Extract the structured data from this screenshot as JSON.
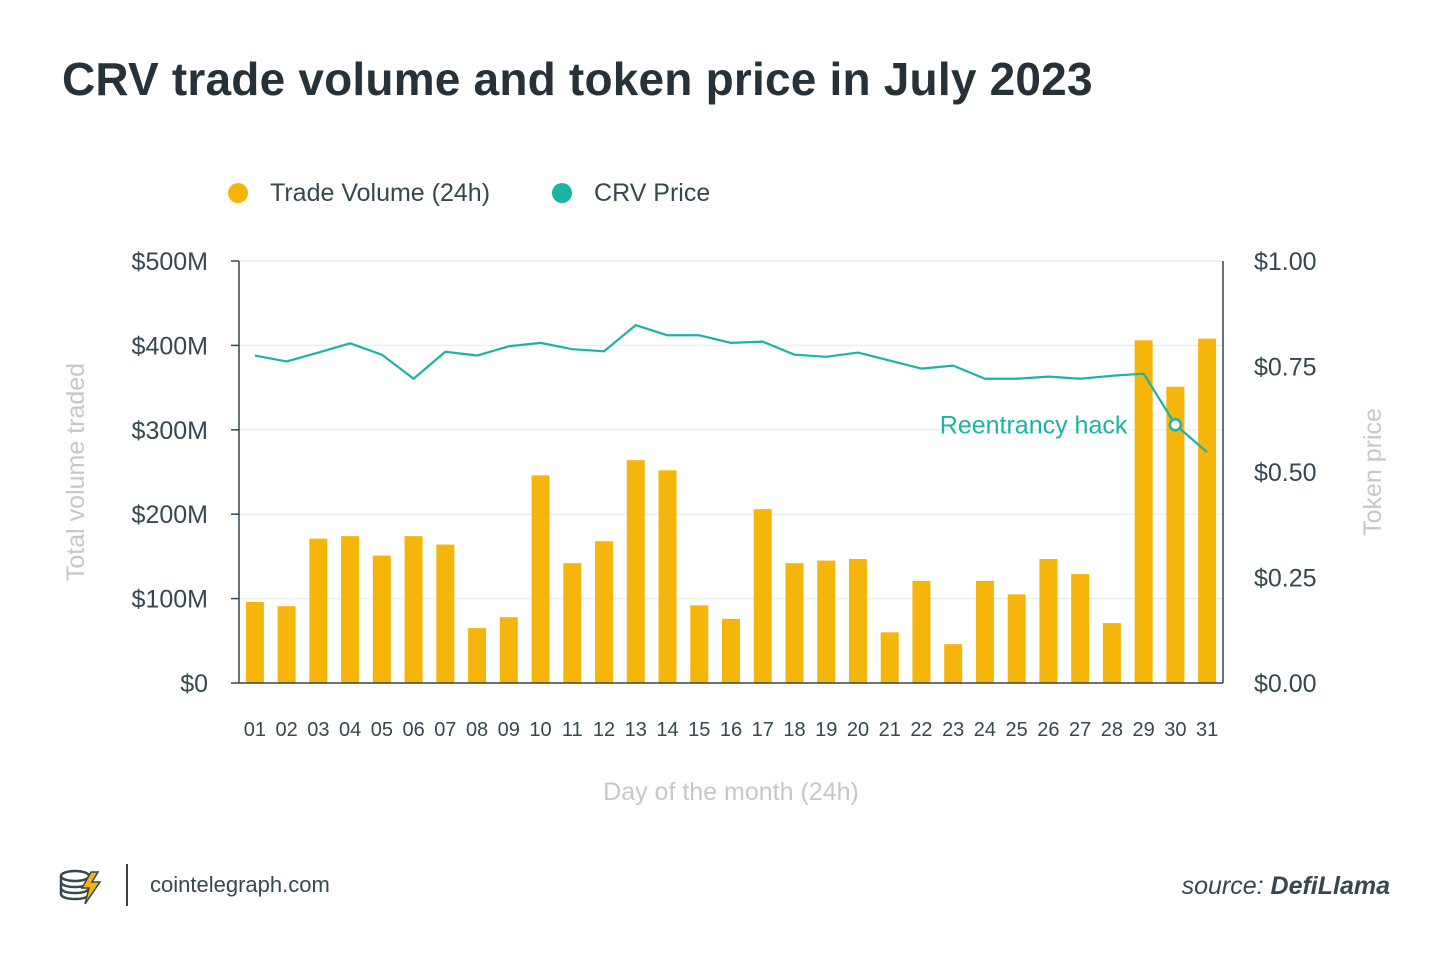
{
  "title": "CRV trade volume and token price in July 2023",
  "legend": [
    {
      "label": "Trade Volume (24h)",
      "color": "#f5b50a"
    },
    {
      "label": "CRV Price",
      "color": "#1ab3a6"
    }
  ],
  "footer": {
    "site": "cointelegraph.com",
    "source_prefix": "source:",
    "source_name": "DefiLlama"
  },
  "chart_data": {
    "type": "bar",
    "title": "CRV trade volume and token price in July 2023",
    "xlabel": "Day of the month (24h)",
    "ylabel": "Total volume traded",
    "ylabel_right": "Token price",
    "categories": [
      "01",
      "02",
      "03",
      "04",
      "05",
      "06",
      "07",
      "08",
      "09",
      "10",
      "11",
      "12",
      "13",
      "14",
      "15",
      "16",
      "17",
      "18",
      "19",
      "20",
      "21",
      "22",
      "23",
      "24",
      "25",
      "26",
      "27",
      "28",
      "29",
      "30",
      "31"
    ],
    "ylim": [
      0,
      500
    ],
    "ylim_right": [
      0,
      1.0
    ],
    "y_ticks": [
      "$0",
      "$100M",
      "$200M",
      "$300M",
      "$400M",
      "$500M"
    ],
    "y_ticks_right": [
      "$0.00",
      "$0.25",
      "$0.50",
      "$0.75",
      "$1.00"
    ],
    "grid": true,
    "legend_position": "top-left",
    "series": [
      {
        "name": "Trade Volume (24h)",
        "type": "bar",
        "axis": "left",
        "unit": "$M",
        "color": "#f5b50a",
        "values": [
          96,
          91,
          171,
          174,
          151,
          174,
          164,
          65,
          78,
          246,
          142,
          168,
          264,
          252,
          92,
          76,
          206,
          142,
          145,
          147,
          60,
          121,
          46,
          121,
          105,
          147,
          129,
          71,
          406,
          351,
          408
        ]
      },
      {
        "name": "CRV Price",
        "type": "line",
        "axis": "right",
        "unit": "$",
        "color": "#1ab3a6",
        "values": [
          0.776,
          0.762,
          0.783,
          0.805,
          0.778,
          0.721,
          0.785,
          0.776,
          0.798,
          0.806,
          0.791,
          0.786,
          0.848,
          0.824,
          0.824,
          0.806,
          0.809,
          0.778,
          0.773,
          0.783,
          0.764,
          0.745,
          0.752,
          0.721,
          0.721,
          0.726,
          0.721,
          0.728,
          0.733,
          0.612,
          0.547
        ]
      }
    ],
    "annotations": [
      {
        "text": "Reentrancy hack",
        "category": "30",
        "value": 0.612,
        "series": "CRV Price",
        "color": "#1ab3a6"
      }
    ]
  }
}
